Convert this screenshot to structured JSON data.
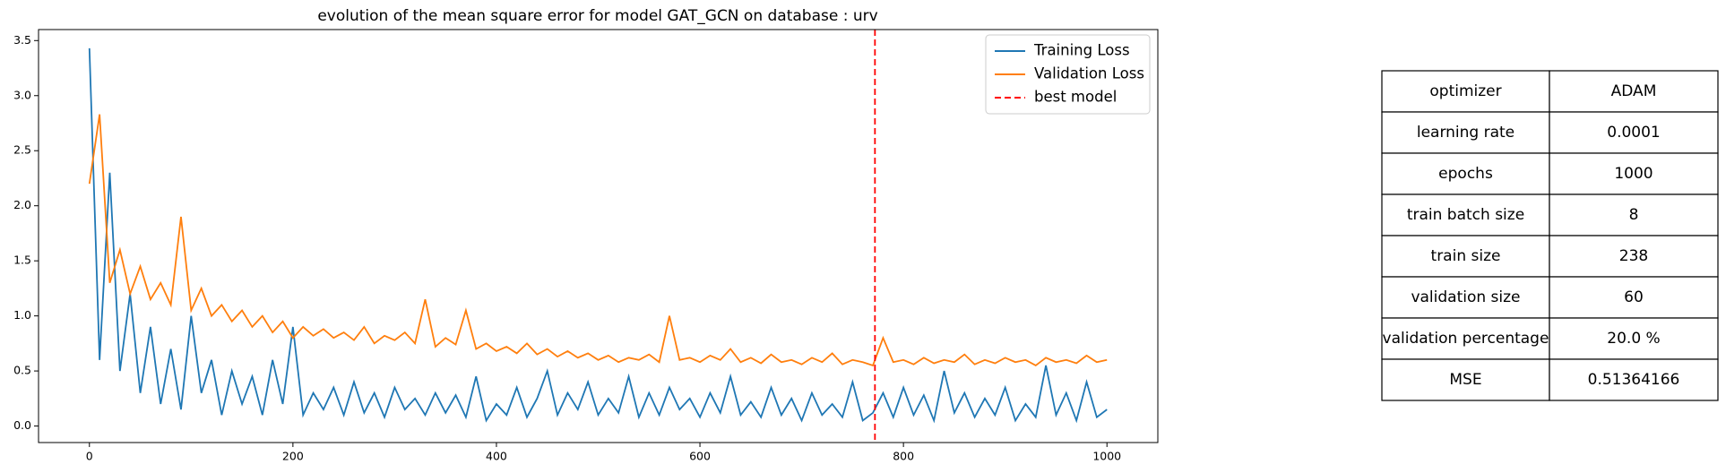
{
  "chart_data": {
    "type": "line",
    "title": "evolution of the mean square error for model GAT_GCN on database : urv",
    "x": [
      0,
      10,
      20,
      30,
      40,
      50,
      60,
      70,
      80,
      90,
      100,
      110,
      120,
      130,
      140,
      150,
      160,
      170,
      180,
      190,
      200,
      210,
      220,
      230,
      240,
      250,
      260,
      270,
      280,
      290,
      300,
      310,
      320,
      330,
      340,
      350,
      360,
      370,
      380,
      390,
      400,
      410,
      420,
      430,
      440,
      450,
      460,
      470,
      480,
      490,
      500,
      510,
      520,
      530,
      540,
      550,
      560,
      570,
      580,
      590,
      600,
      610,
      620,
      630,
      640,
      650,
      660,
      670,
      680,
      690,
      700,
      710,
      720,
      730,
      740,
      750,
      760,
      770,
      780,
      790,
      800,
      810,
      820,
      830,
      840,
      850,
      860,
      870,
      880,
      890,
      900,
      910,
      920,
      930,
      940,
      950,
      960,
      970,
      980,
      990,
      1000
    ],
    "series": [
      {
        "name": "Training Loss",
        "color": "#1f77b4",
        "values": [
          3.43,
          0.6,
          2.3,
          0.5,
          1.2,
          0.3,
          0.9,
          0.2,
          0.7,
          0.15,
          1.0,
          0.3,
          0.6,
          0.1,
          0.5,
          0.2,
          0.45,
          0.1,
          0.6,
          0.2,
          0.9,
          0.1,
          0.3,
          0.15,
          0.35,
          0.1,
          0.4,
          0.12,
          0.3,
          0.08,
          0.35,
          0.15,
          0.25,
          0.1,
          0.3,
          0.12,
          0.28,
          0.08,
          0.45,
          0.05,
          0.2,
          0.1,
          0.35,
          0.08,
          0.25,
          0.5,
          0.1,
          0.3,
          0.15,
          0.4,
          0.1,
          0.25,
          0.12,
          0.45,
          0.08,
          0.3,
          0.1,
          0.35,
          0.15,
          0.25,
          0.08,
          0.3,
          0.12,
          0.45,
          0.1,
          0.22,
          0.08,
          0.35,
          0.1,
          0.25,
          0.05,
          0.3,
          0.1,
          0.2,
          0.08,
          0.4,
          0.05,
          0.12,
          0.3,
          0.08,
          0.35,
          0.1,
          0.28,
          0.05,
          0.5,
          0.12,
          0.3,
          0.08,
          0.25,
          0.1,
          0.35,
          0.05,
          0.2,
          0.08,
          0.55,
          0.1,
          0.3,
          0.05,
          0.4,
          0.08,
          0.15
        ]
      },
      {
        "name": "Validation Loss",
        "color": "#ff7f0e",
        "values": [
          2.2,
          2.83,
          1.3,
          1.6,
          1.2,
          1.45,
          1.15,
          1.3,
          1.1,
          1.9,
          1.05,
          1.25,
          1.0,
          1.1,
          0.95,
          1.05,
          0.9,
          1.0,
          0.85,
          0.95,
          0.8,
          0.9,
          0.82,
          0.88,
          0.8,
          0.85,
          0.78,
          0.9,
          0.75,
          0.82,
          0.78,
          0.85,
          0.75,
          1.15,
          0.72,
          0.8,
          0.74,
          1.05,
          0.7,
          0.75,
          0.68,
          0.72,
          0.66,
          0.75,
          0.65,
          0.7,
          0.63,
          0.68,
          0.62,
          0.66,
          0.6,
          0.64,
          0.58,
          0.62,
          0.6,
          0.65,
          0.58,
          1.0,
          0.6,
          0.62,
          0.58,
          0.64,
          0.6,
          0.7,
          0.58,
          0.62,
          0.57,
          0.65,
          0.58,
          0.6,
          0.56,
          0.62,
          0.58,
          0.66,
          0.56,
          0.6,
          0.58,
          0.55,
          0.8,
          0.58,
          0.6,
          0.56,
          0.62,
          0.57,
          0.6,
          0.58,
          0.65,
          0.56,
          0.6,
          0.57,
          0.62,
          0.58,
          0.6,
          0.55,
          0.62,
          0.58,
          0.6,
          0.57,
          0.64,
          0.58,
          0.6
        ]
      }
    ],
    "vlines": [
      {
        "name": "best model",
        "x": 772,
        "color": "#ff0000",
        "dashed": true
      }
    ],
    "xlim": [
      -50,
      1050
    ],
    "ylim": [
      -0.15,
      3.6
    ],
    "xticks": [
      0,
      200,
      400,
      600,
      800,
      1000
    ],
    "yticks": [
      {
        "value": 0,
        "label": "0.0"
      },
      0.5,
      {
        "value": 1,
        "label": "1.0"
      },
      1.5,
      {
        "value": 2,
        "label": "2.0"
      },
      2.5,
      {
        "value": 3,
        "label": "3.0"
      },
      3.5
    ],
    "legend": "upper right"
  },
  "table": {
    "rows": [
      [
        "optimizer",
        "ADAM"
      ],
      [
        "learning rate",
        "0.0001"
      ],
      [
        "epochs",
        "1000"
      ],
      [
        "train batch size",
        "8"
      ],
      [
        "train size",
        "238"
      ],
      [
        "validation size",
        "60"
      ],
      [
        "validation percentage",
        "20.0 %"
      ],
      [
        "MSE",
        "0.51364166"
      ]
    ]
  }
}
